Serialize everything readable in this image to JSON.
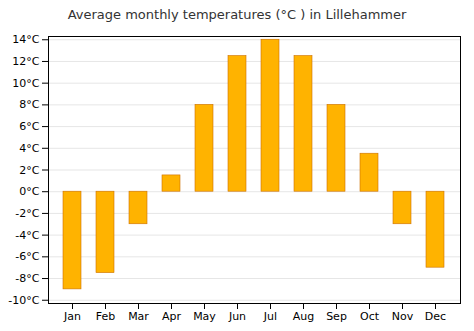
{
  "chart_data": {
    "type": "bar",
    "title": "Average monthly temperatures (°C ) in Lillehammer",
    "categories": [
      "Jan",
      "Feb",
      "Mar",
      "Apr",
      "May",
      "Jun",
      "Jul",
      "Aug",
      "Sep",
      "Oct",
      "Nov",
      "Dec"
    ],
    "values": [
      -9.0,
      -7.5,
      -3.0,
      1.5,
      8.0,
      12.5,
      14.0,
      12.5,
      8.0,
      3.5,
      -3.0,
      -7.0
    ],
    "color": "#FFB300",
    "ylim": [
      -10.3,
      14.3
    ],
    "yticks": [
      {
        "value": -10,
        "label": "-10°C"
      },
      {
        "value": -8,
        "label": "-8°C"
      },
      {
        "value": -6,
        "label": "-6°C"
      },
      {
        "value": -4,
        "label": "-4°C"
      },
      {
        "value": -2,
        "label": "-2°C"
      },
      {
        "value": 0,
        "label": "0°C"
      },
      {
        "value": 2,
        "label": "2°C"
      },
      {
        "value": 4,
        "label": "4°C"
      },
      {
        "value": 6,
        "label": "6°C"
      },
      {
        "value": 8,
        "label": "8°C"
      },
      {
        "value": 10,
        "label": "10°C"
      },
      {
        "value": 12,
        "label": "12°C"
      },
      {
        "value": 14,
        "label": "14°C"
      }
    ],
    "grid": true
  }
}
